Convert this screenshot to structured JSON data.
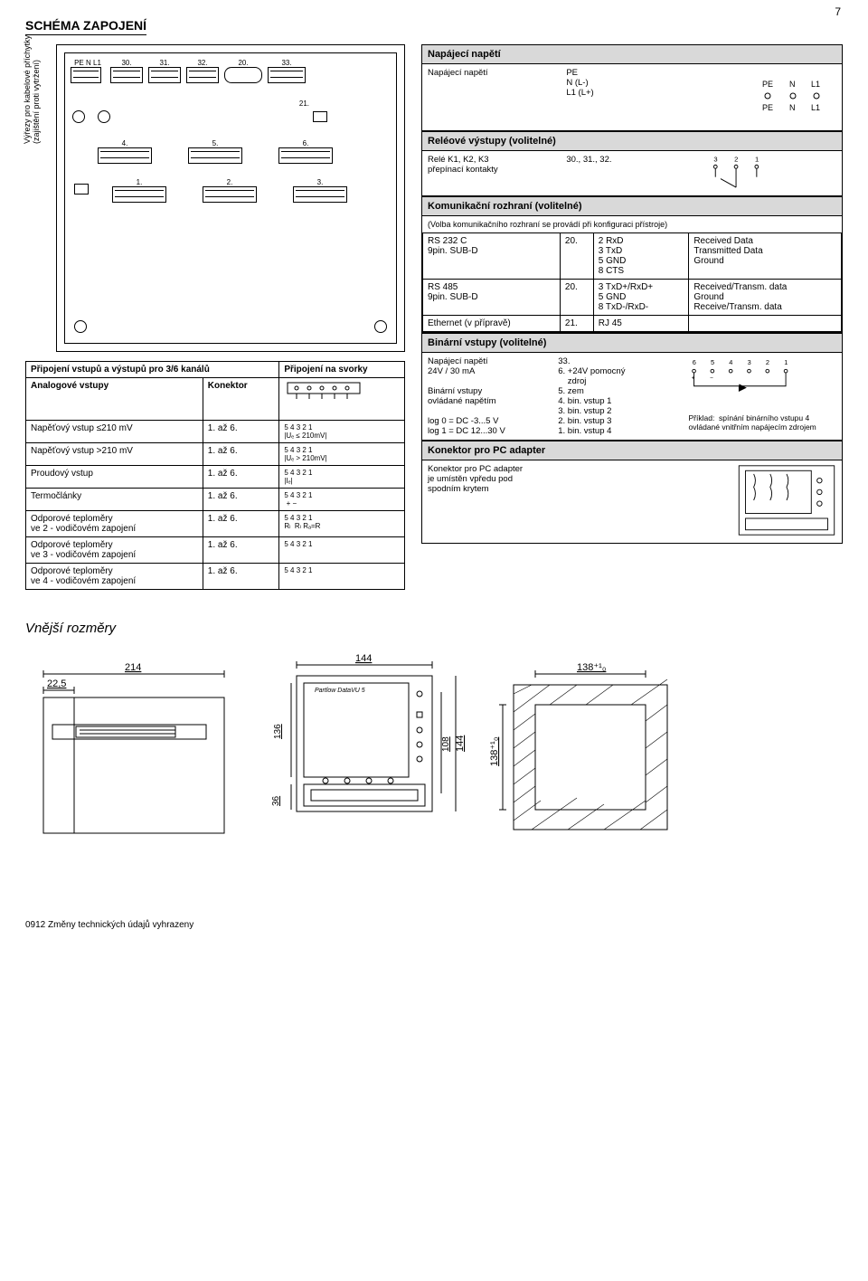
{
  "page_number": "7",
  "section_title": "SCHÉMA ZAPOJENÍ",
  "schematic": {
    "side_label_line1": "Výřezy pro kabelové příchytky",
    "side_label_line2": "(zajištění proti vytržení)",
    "top_terminals": [
      "PE N L1",
      "30.",
      "31.",
      "32.",
      "20.",
      "33."
    ],
    "mid_label": "21.",
    "row_a": [
      "4.",
      "5.",
      "6."
    ],
    "row_b": [
      "1.",
      "2.",
      "3."
    ]
  },
  "io_table": {
    "title": "Připojení vstupů a výstupů pro 3/6 kanálů",
    "col2_header": "Připojení na svorky",
    "subheader1": "Analogové vstupy",
    "subheader2": "Konektor",
    "rows": [
      {
        "name": "Napěťový vstup ≤210 mV",
        "k": "1. až 6.",
        "d": "5 4 3 2 1\n|Uₑ ≤ 210mV|"
      },
      {
        "name": "Napěťový vstup >210 mV",
        "k": "1. až 6.",
        "d": "5 4 3 2 1\n|Uₑ > 210mV|"
      },
      {
        "name": "Proudový vstup",
        "k": "1. až 6.",
        "d": "5 4 3 2 1\n|Iₑ|"
      },
      {
        "name": "Termočlánky",
        "k": "1. až 6.",
        "d": "5 4 3 2 1\n + −"
      },
      {
        "name": "Odporové teploměry\nve 2 - vodičovém zapojení",
        "k": "1. až 6.",
        "d": "5 4 3 2 1\nRₗ  Rₗ Rₐ=R"
      },
      {
        "name": "Odporové teploměry\nve 3 - vodičovém zapojení",
        "k": "1. až 6.",
        "d": "5 4 3 2 1"
      },
      {
        "name": "Odporové teploměry\nve 4 - vodičovém zapojení",
        "k": "1. až 6.",
        "d": "5 4 3 2 1"
      }
    ]
  },
  "right": {
    "power": {
      "title": "Napájecí napětí",
      "label": "Napájecí napětí",
      "pins": "PE\nN (L-)\nL1 (L+)",
      "diagram": "PE  N  L1\nPE  N  L1"
    },
    "relay": {
      "title": "Reléové výstupy (volitelné)",
      "label": "Relé K1, K2, K3\npřepínací kontakty",
      "terminals": "30., 31., 32.",
      "contact_nums": "3   2   1"
    },
    "comm": {
      "title": "Komunikační rozhraní (volitelné)",
      "note": "(Volba komunikačního rozhraní se provádí při konfiguraci přístroje)",
      "rows": [
        {
          "name": "RS 232 C\n9pin. SUB-D",
          "t": "20.",
          "pins": "2 RxD\n3 TxD\n5 GND\n8 CTS",
          "desc": "Received Data\nTransmitted Data\nGround"
        },
        {
          "name": "RS 485\n9pin. SUB-D",
          "t": "20.",
          "pins": "3 TxD+/RxD+\n5 GND\n8 TxD-/RxD-",
          "desc": "Received/Transm. data\nGround\nReceive/Transm. data"
        },
        {
          "name": "Ethernet (v přípravě)",
          "t": "21.",
          "pins": "RJ 45",
          "desc": ""
        }
      ]
    },
    "binary": {
      "title": "Binární vstupy (volitelné)",
      "left": "Napájecí napětí\n24V / 30 mA\n\nBinární vstupy\novládané napětím\n\nlog 0 = DC -3...5 V\nlog 1 = DC 12...30 V",
      "mid": "33.\n6. +24V pomocný\n    zdroj\n5. zem\n4. bin. vstup 1\n3. bin. vstup 2\n2. bin. vstup 3\n1. bin. vstup 4",
      "diagram_nums": "6   5   4   3   2   1\no+  o−  o   o   o   o",
      "diagram_note": "Příklad:  spínání binárního vstupu 4\novládané vnitřním napájecím zdrojem"
    },
    "pc": {
      "title": "Konektor pro PC adapter",
      "text": "Konektor pro PC adapter\nje umístěn vpředu pod\nspodním krytem"
    }
  },
  "dimensions": {
    "title": "Vnější rozměry",
    "side": {
      "w": "214",
      "depth": "22,5"
    },
    "front": {
      "w": "144",
      "h": "144",
      "inner_h": "136",
      "below": "36",
      "side": "108",
      "brand": "Partlow  DataVU 5"
    },
    "cutout": {
      "w": "138⁺¹₀",
      "h": "138⁺¹₀"
    }
  },
  "footer": "0912 Změny technických údajů vyhrazeny"
}
